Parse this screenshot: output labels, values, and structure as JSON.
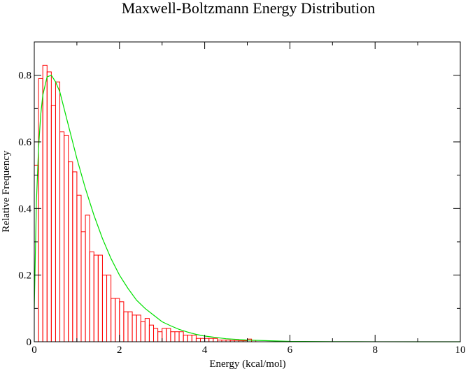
{
  "chart_data": {
    "type": "bar",
    "title": "Maxwell-Boltzmann Energy Distribution",
    "xlabel": "Energy (kcal/mol)",
    "ylabel": "Relative Frequency",
    "xlim": [
      0,
      10
    ],
    "ylim": [
      0,
      0.9
    ],
    "x_ticks": [
      0,
      2,
      4,
      6,
      8,
      10
    ],
    "x_tick_labels": [
      "0",
      "2",
      "4",
      "6",
      "8",
      "10"
    ],
    "y_ticks": [
      0,
      0.2,
      0.4,
      0.6,
      0.8
    ],
    "y_tick_labels": [
      "0",
      "0.2",
      "0.4",
      "0.6",
      "0.8"
    ],
    "grid": false,
    "legend": "none",
    "series": [
      {
        "kind": "histogram",
        "color": "#ff0000",
        "bin_width": 0.1,
        "x": [
          0.0,
          0.1,
          0.2,
          0.3,
          0.4,
          0.5,
          0.6,
          0.7,
          0.8,
          0.9,
          1.0,
          1.1,
          1.2,
          1.3,
          1.4,
          1.5,
          1.6,
          1.7,
          1.8,
          1.9,
          2.0,
          2.1,
          2.2,
          2.3,
          2.4,
          2.5,
          2.6,
          2.7,
          2.8,
          2.9,
          3.0,
          3.1,
          3.2,
          3.3,
          3.4,
          3.5,
          3.6,
          3.7,
          3.8,
          3.9,
          4.0,
          4.1,
          4.2,
          4.3,
          4.4,
          4.5,
          4.6,
          4.7,
          4.8,
          4.9,
          5.0,
          5.1
        ],
        "values": [
          0.53,
          0.79,
          0.83,
          0.81,
          0.71,
          0.78,
          0.63,
          0.62,
          0.54,
          0.51,
          0.44,
          0.33,
          0.38,
          0.27,
          0.26,
          0.26,
          0.2,
          0.2,
          0.13,
          0.13,
          0.12,
          0.09,
          0.09,
          0.08,
          0.08,
          0.06,
          0.07,
          0.05,
          0.04,
          0.03,
          0.04,
          0.04,
          0.03,
          0.03,
          0.03,
          0.02,
          0.02,
          0.02,
          0.01,
          0.01,
          0.01,
          0.01,
          0.01,
          0.005,
          0.005,
          0.005,
          0.004,
          0.004,
          0.003,
          0.003,
          0.008,
          0.004
        ]
      },
      {
        "kind": "line",
        "color": "#00e000",
        "x": [
          0.0,
          0.05,
          0.1,
          0.15,
          0.2,
          0.3,
          0.4,
          0.5,
          0.6,
          0.7,
          0.8,
          0.9,
          1.0,
          1.2,
          1.4,
          1.6,
          1.8,
          2.0,
          2.2,
          2.4,
          2.6,
          2.8,
          3.0,
          3.2,
          3.4,
          3.6,
          3.8,
          4.0,
          4.5,
          5.0,
          6.0,
          7.0,
          8.0,
          9.0,
          10.0
        ],
        "values": [
          0.1,
          0.42,
          0.58,
          0.68,
          0.74,
          0.795,
          0.8,
          0.78,
          0.75,
          0.7,
          0.65,
          0.6,
          0.55,
          0.46,
          0.38,
          0.31,
          0.25,
          0.2,
          0.16,
          0.125,
          0.1,
          0.08,
          0.06,
          0.048,
          0.037,
          0.029,
          0.022,
          0.017,
          0.009,
          0.005,
          0.001,
          0.0003,
          0.0001,
          0.0,
          0.0
        ]
      }
    ]
  }
}
